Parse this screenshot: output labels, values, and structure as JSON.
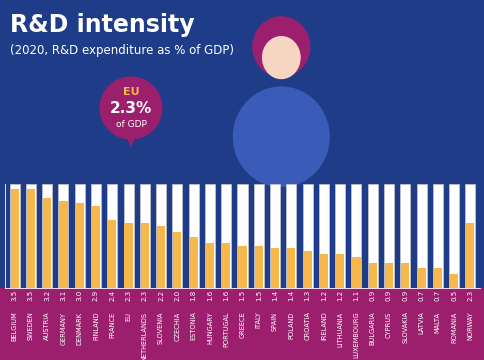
{
  "chart_data": {
    "type": "bar",
    "title": "R&D intensity",
    "subtitle": "(2020, R&D expenditure as % of GDP)",
    "annotation": [
      "EU",
      "2.3%",
      "of GDP"
    ],
    "categories": [
      "BELGIUM",
      "SWEDEN",
      "AUSTRIA",
      "GERMANY",
      "DENMARK",
      "FINLAND",
      "FRANCE",
      "EU",
      "NETHERLANDS",
      "SLOVENIA",
      "CZECHIA",
      "ESTONIA",
      "HUNGARY",
      "PORTUGAL",
      "GREECE",
      "ITALY",
      "SPAIN",
      "POLAND",
      "CROATIA",
      "IRELAND",
      "LITHUANIA",
      "LUXEMBOURG",
      "BULGARIA",
      "CYPRUS",
      "SLOVAKIA",
      "LATVIA",
      "MALTA",
      "ROMANIA",
      "NORWAY"
    ],
    "values": [
      3.5,
      3.5,
      3.2,
      3.1,
      3.0,
      2.9,
      2.4,
      2.3,
      2.3,
      2.2,
      2.0,
      1.8,
      1.6,
      1.6,
      1.5,
      1.5,
      1.4,
      1.4,
      1.3,
      1.2,
      1.2,
      1.1,
      0.9,
      0.9,
      0.9,
      0.7,
      0.7,
      0.5,
      2.3
    ],
    "color": "#f7b84b",
    "ylim": [
      0,
      3.7
    ],
    "yticks": [],
    "grid": false,
    "data_labels": true,
    "tick_labels": "x"
  }
}
